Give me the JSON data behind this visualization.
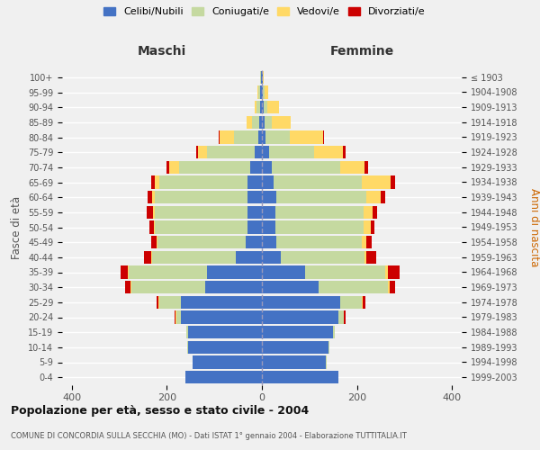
{
  "age_groups": [
    "0-4",
    "5-9",
    "10-14",
    "15-19",
    "20-24",
    "25-29",
    "30-34",
    "35-39",
    "40-44",
    "45-49",
    "50-54",
    "55-59",
    "60-64",
    "65-69",
    "70-74",
    "75-79",
    "80-84",
    "85-89",
    "90-94",
    "95-99",
    "100+"
  ],
  "birth_years": [
    "1999-2003",
    "1994-1998",
    "1989-1993",
    "1984-1988",
    "1979-1983",
    "1974-1978",
    "1969-1973",
    "1964-1968",
    "1959-1963",
    "1954-1958",
    "1949-1953",
    "1944-1948",
    "1939-1943",
    "1934-1938",
    "1929-1933",
    "1924-1928",
    "1919-1923",
    "1914-1918",
    "1909-1913",
    "1904-1908",
    "≤ 1903"
  ],
  "maschi": {
    "celibi": [
      160,
      145,
      155,
      155,
      170,
      170,
      120,
      115,
      55,
      35,
      30,
      30,
      30,
      30,
      25,
      15,
      8,
      5,
      3,
      3,
      2
    ],
    "coniugati": [
      1,
      1,
      2,
      3,
      10,
      45,
      155,
      165,
      175,
      185,
      195,
      195,
      195,
      185,
      150,
      100,
      50,
      15,
      8,
      4,
      2
    ],
    "vedovi": [
      0,
      0,
      0,
      0,
      1,
      2,
      2,
      2,
      2,
      2,
      2,
      3,
      5,
      10,
      20,
      20,
      30,
      12,
      5,
      2,
      0
    ],
    "divorziati": [
      0,
      0,
      0,
      0,
      2,
      5,
      10,
      15,
      15,
      10,
      10,
      15,
      10,
      8,
      5,
      4,
      2,
      0,
      0,
      0,
      0
    ]
  },
  "femmine": {
    "nubili": [
      160,
      135,
      140,
      150,
      160,
      165,
      120,
      90,
      40,
      30,
      28,
      28,
      30,
      25,
      20,
      15,
      8,
      5,
      3,
      2,
      1
    ],
    "coniugate": [
      1,
      1,
      2,
      3,
      12,
      45,
      145,
      170,
      175,
      180,
      185,
      185,
      190,
      185,
      145,
      95,
      50,
      15,
      8,
      3,
      1
    ],
    "vedove": [
      0,
      0,
      0,
      0,
      1,
      2,
      3,
      5,
      5,
      10,
      15,
      20,
      30,
      60,
      50,
      60,
      70,
      40,
      25,
      8,
      1
    ],
    "divorziate": [
      0,
      0,
      0,
      0,
      2,
      5,
      12,
      25,
      20,
      10,
      8,
      10,
      10,
      10,
      8,
      5,
      2,
      0,
      0,
      0,
      0
    ]
  },
  "colors": {
    "celibi": "#4472C4",
    "coniugati": "#C5D9A0",
    "vedovi": "#FFD966",
    "divorziati": "#CC0000"
  },
  "legend_labels": [
    "Celibi/Nubili",
    "Coniugati/e",
    "Vedovi/e",
    "Divorziati/e"
  ],
  "xlim": 420,
  "title": "Popolazione per età, sesso e stato civile - 2004",
  "subtitle": "COMUNE DI CONCORDIA SULLA SECCHIA (MO) - Dati ISTAT 1° gennaio 2004 - Elaborazione TUTTITALIA.IT",
  "ylabel_left": "Fasce di età",
  "ylabel_right": "Anni di nascita",
  "xlabel_left": "Maschi",
  "xlabel_right": "Femmine",
  "bg_color": "#f0f0f0",
  "bar_height": 0.85
}
